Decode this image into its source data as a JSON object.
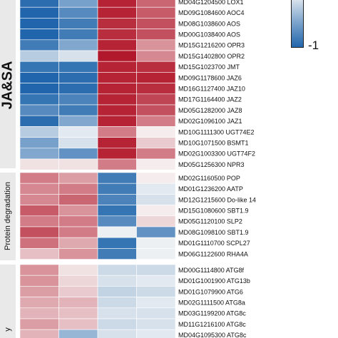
{
  "chart_data": {
    "type": "heatmap",
    "columns": 4,
    "legend": {
      "ticks": [
        "-1"
      ],
      "colors": {
        "low": "#2166ac",
        "mid": "#f7f7f7",
        "high": "#b2182b"
      }
    },
    "groups": [
      {
        "label": "JA&SA",
        "rows": [
          {
            "label": "MD04G1204500 LOX1",
            "values": [
              -0.95,
              -0.6,
              0.95,
              0.65
            ]
          },
          {
            "label": "MD09G1084600 AOC4",
            "values": [
              -1.0,
              -0.75,
              0.95,
              0.7
            ]
          },
          {
            "label": "MD08G1038600 AOS",
            "values": [
              -1.0,
              -0.85,
              0.9,
              0.75
            ]
          },
          {
            "label": "MD00G1038400 AOS",
            "values": [
              -1.0,
              -0.85,
              0.9,
              0.75
            ]
          },
          {
            "label": "MD15G1216200 OPR3",
            "values": [
              -0.85,
              -0.55,
              0.95,
              0.45
            ]
          },
          {
            "label": "MD15G1402800 OPR2",
            "values": [
              -0.3,
              -0.15,
              1.0,
              0.5
            ]
          },
          {
            "label": "MD15G1023700 JMT",
            "values": [
              -0.9,
              -0.9,
              0.95,
              0.9
            ]
          },
          {
            "label": "MD09G1178600 JAZ6",
            "values": [
              -1.0,
              -0.95,
              0.95,
              0.95
            ]
          },
          {
            "label": "MD16G1127400 JAZ10",
            "values": [
              -1.0,
              -0.95,
              0.95,
              0.9
            ]
          },
          {
            "label": "MD17G1164400 JAZ2",
            "values": [
              -0.9,
              -0.8,
              0.95,
              0.8
            ]
          },
          {
            "label": "MD05G1282000 JAZ8",
            "values": [
              -0.75,
              -0.85,
              0.95,
              0.75
            ]
          },
          {
            "label": "MD02G1096100 JAZ1",
            "values": [
              -0.95,
              -0.55,
              0.95,
              0.55
            ]
          },
          {
            "label": "MD10G1111300 UGT74E2",
            "values": [
              -0.3,
              -0.1,
              0.55,
              0.05
            ]
          },
          {
            "label": "MD10G1071500 BSMT1",
            "values": [
              -0.6,
              -0.15,
              0.95,
              0.2
            ]
          },
          {
            "label": "MD02G1003300 UGT74F2",
            "values": [
              -0.55,
              -0.7,
              0.95,
              0.55
            ]
          },
          {
            "label": "MD05G1256300 NPR3",
            "values": [
              0.1,
              0.1,
              0.55,
              0.05
            ]
          }
        ]
      },
      {
        "label": "Protein degradation",
        "rows": [
          {
            "label": "MD02G1160500 POP",
            "values": [
              0.55,
              0.4,
              -0.85,
              0.05
            ]
          },
          {
            "label": "MD01G1236200 AATP",
            "values": [
              0.5,
              0.55,
              -0.85,
              -0.1
            ]
          },
          {
            "label": "MD12G1215600 Do-like 14",
            "values": [
              0.5,
              0.65,
              -0.8,
              -0.15
            ]
          },
          {
            "label": "MD15G1080600 SBT1.9",
            "values": [
              0.7,
              0.45,
              -0.9,
              0.05
            ]
          },
          {
            "label": "MD05G1120100 SLP2",
            "values": [
              0.55,
              0.55,
              -0.75,
              0.15
            ]
          },
          {
            "label": "MD08G1098100 SBT1.9",
            "values": [
              0.75,
              0.55,
              -0.05,
              -0.7
            ]
          },
          {
            "label": "MD01G1110700 SCPL27",
            "values": [
              0.6,
              0.35,
              -0.9,
              -0.05
            ]
          },
          {
            "label": "MD06G1122600 RHA4A",
            "values": [
              0.25,
              0.45,
              -0.85,
              -0.05
            ]
          }
        ]
      },
      {
        "label": "y",
        "rows": [
          {
            "label": "MD00G1114800 ATG8f",
            "values": [
              0.45,
              0.1,
              -0.2,
              -0.2
            ]
          },
          {
            "label": "MD01G1001900 ATG13b",
            "values": [
              0.45,
              0.15,
              -0.15,
              -0.1
            ]
          },
          {
            "label": "MD01G1079900 ATG6",
            "values": [
              0.4,
              0.2,
              -0.25,
              -0.2
            ]
          },
          {
            "label": "MD02G1111500 ATG8a",
            "values": [
              0.35,
              0.3,
              -0.2,
              -0.1
            ]
          },
          {
            "label": "MD03G1199200 ATG8c",
            "values": [
              0.3,
              0.25,
              -0.15,
              -0.15
            ]
          },
          {
            "label": "MD11G1216100 ATG8c",
            "values": [
              0.4,
              0.25,
              -0.2,
              -0.15
            ]
          },
          {
            "label": "MD04G1095300 ATG8c",
            "values": [
              0.3,
              -0.45,
              -0.15,
              -0.1
            ]
          }
        ]
      }
    ]
  }
}
